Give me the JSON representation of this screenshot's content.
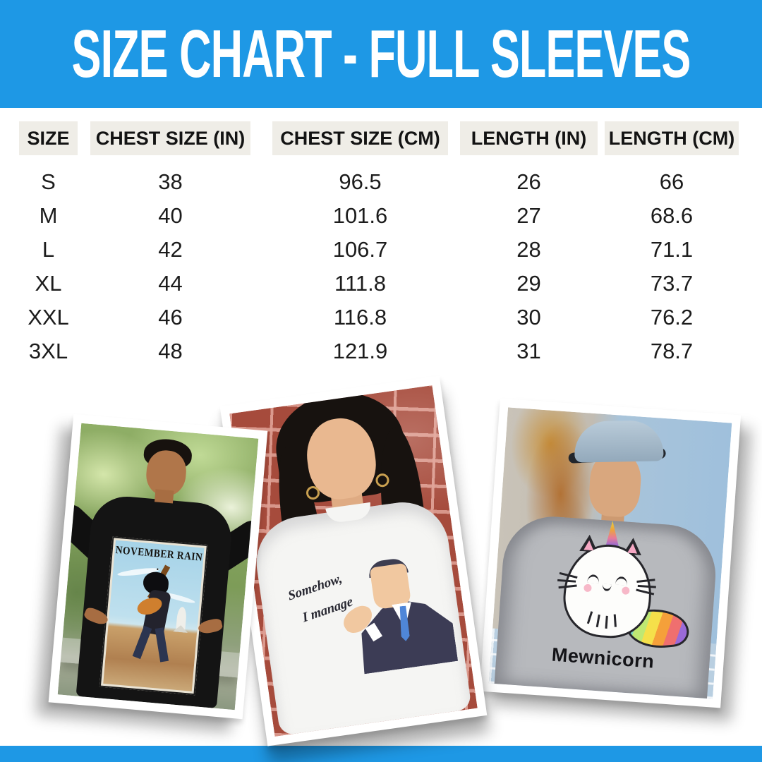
{
  "banner": {
    "title": "SIZE CHART - FULL SLEEVES",
    "bg_color": "#1E98E5",
    "text_color": "#FFFFFF"
  },
  "table": {
    "header_bg": "#EFEDE7",
    "columns": [
      "SIZE",
      "CHEST SIZE (IN)",
      "CHEST SIZE (CM)",
      "LENGTH (IN)",
      "LENGTH (CM)"
    ],
    "rows": [
      [
        "S",
        "38",
        "96.5",
        "26",
        "66"
      ],
      [
        "M",
        "40",
        "101.6",
        "27",
        "68.6"
      ],
      [
        "L",
        "42",
        "106.7",
        "28",
        "71.1"
      ],
      [
        "XL",
        "44",
        "111.8",
        "29",
        "73.7"
      ],
      [
        "XXL",
        "46",
        "116.8",
        "30",
        "76.2"
      ],
      [
        "3XL",
        "48",
        "121.9",
        "31",
        "78.7"
      ]
    ]
  },
  "chart_data": {
    "type": "table",
    "title": "SIZE CHART - FULL SLEEVES",
    "columns": [
      "SIZE",
      "CHEST SIZE (IN)",
      "CHEST SIZE (CM)",
      "LENGTH (IN)",
      "LENGTH (CM)"
    ],
    "rows": [
      [
        "S",
        38,
        96.5,
        26,
        66
      ],
      [
        "M",
        40,
        101.6,
        27,
        68.6
      ],
      [
        "L",
        42,
        106.7,
        28,
        71.1
      ],
      [
        "XL",
        44,
        111.8,
        29,
        73.7
      ],
      [
        "XXL",
        46,
        116.8,
        30,
        76.2
      ],
      [
        "3XL",
        48,
        121.9,
        31,
        78.7
      ]
    ]
  },
  "photos": [
    {
      "description": "man in black full-sleeve tee pointing at chest print",
      "print_title": "NOVEMBER RAIN ."
    },
    {
      "description": "woman in white full-sleeve tee against red brick wall",
      "print_line1": "Somehow,",
      "print_line2": "I manage"
    },
    {
      "description": "man with backwards cap in grey full-sleeve tee",
      "print_text": "Mewnicorn"
    }
  ]
}
